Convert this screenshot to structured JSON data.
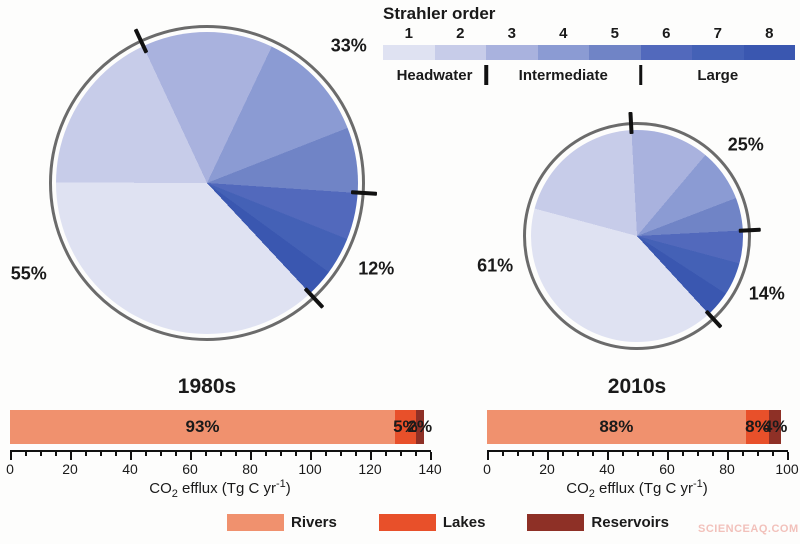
{
  "strahler_legend": {
    "title": "Strahler order",
    "orders": [
      {
        "order": "1",
        "color": "#dfe2f2"
      },
      {
        "order": "2",
        "color": "#c7cce9"
      },
      {
        "order": "3",
        "color": "#a9b2de"
      },
      {
        "order": "4",
        "color": "#8b9bd3"
      },
      {
        "order": "5",
        "color": "#7084c6"
      },
      {
        "order": "6",
        "color": "#5269bc"
      },
      {
        "order": "7",
        "color": "#4461b6"
      },
      {
        "order": "8",
        "color": "#3a57b0"
      }
    ],
    "groups": [
      {
        "label": "Headwater",
        "span": [
          1,
          2
        ]
      },
      {
        "label": "Intermediate",
        "span": [
          3,
          5
        ]
      },
      {
        "label": "Large",
        "span": [
          6,
          8
        ]
      }
    ]
  },
  "chart_data": [
    {
      "type": "pie",
      "title": "1980s",
      "start_angle_deg": -25,
      "slices": [
        {
          "order": "3",
          "value": 14
        },
        {
          "order": "4",
          "value": 12
        },
        {
          "order": "5",
          "value": 7
        },
        {
          "order": "6",
          "value": 5
        },
        {
          "order": "7",
          "value": 4
        },
        {
          "order": "8",
          "value": 3
        },
        {
          "order": "1",
          "value": 37
        },
        {
          "order": "2",
          "value": 18
        }
      ],
      "group_shares": [
        {
          "group": "Intermediate",
          "label": "33%",
          "value": 33,
          "label_angle": 46,
          "label_radius": 197
        },
        {
          "group": "Large",
          "label": "12%",
          "value": 12,
          "label_angle": 117,
          "label_radius": 190
        },
        {
          "group": "Headwater",
          "label": "55%",
          "value": 55,
          "label_angle": 243,
          "label_radius": 200
        }
      ],
      "tick_angles": [
        -25,
        93.8,
        137
      ]
    },
    {
      "type": "pie",
      "title": "2010s",
      "start_angle_deg": -3,
      "slices": [
        {
          "order": "3",
          "value": 12
        },
        {
          "order": "4",
          "value": 8
        },
        {
          "order": "5",
          "value": 5
        },
        {
          "order": "6",
          "value": 5
        },
        {
          "order": "7",
          "value": 5
        },
        {
          "order": "8",
          "value": 4
        },
        {
          "order": "1",
          "value": 41
        },
        {
          "order": "2",
          "value": 20
        }
      ],
      "group_shares": [
        {
          "group": "Intermediate",
          "label": "25%",
          "value": 25,
          "label_angle": 50,
          "label_radius": 142
        },
        {
          "group": "Large",
          "label": "14%",
          "value": 14,
          "label_angle": 114,
          "label_radius": 142
        },
        {
          "group": "Headwater",
          "label": "61%",
          "value": 61,
          "label_angle": 258,
          "label_radius": 145
        }
      ],
      "tick_angles": [
        -3,
        87,
        137.4
      ]
    },
    {
      "type": "stacked_bar",
      "period": "1980s",
      "total_value": 138,
      "axis": {
        "min": 0,
        "max": 140,
        "major_step": 20,
        "minor_step": 5,
        "label_pre": "CO",
        "label_sub": "2",
        "label_mid": " efflux (Tg C yr",
        "label_sup": "-1",
        "label_post": ")"
      },
      "segments": [
        {
          "name": "Rivers",
          "label": "93%",
          "pct": 93
        },
        {
          "name": "Lakes",
          "label": "5%",
          "pct": 5
        },
        {
          "name": "Reservoirs",
          "label": "2%",
          "pct": 2
        }
      ]
    },
    {
      "type": "stacked_bar",
      "period": "2010s",
      "total_value": 98,
      "axis": {
        "min": 0,
        "max": 100,
        "major_step": 20,
        "minor_step": 5,
        "label_pre": "CO",
        "label_sub": "2",
        "label_mid": " efflux (Tg C yr",
        "label_sup": "-1",
        "label_post": ")"
      },
      "segments": [
        {
          "name": "Rivers",
          "label": "88%",
          "pct": 88
        },
        {
          "name": "Lakes",
          "label": "8%",
          "pct": 8
        },
        {
          "name": "Reservoirs",
          "label": "4%",
          "pct": 4
        }
      ]
    }
  ],
  "bottom_legend": {
    "items": [
      {
        "label": "Rivers",
        "color": "#f0916e"
      },
      {
        "label": "Lakes",
        "color": "#e8502a"
      },
      {
        "label": "Reservoirs",
        "color": "#8e3026"
      }
    ]
  },
  "watermark": "SCIENCEAQ.COM"
}
